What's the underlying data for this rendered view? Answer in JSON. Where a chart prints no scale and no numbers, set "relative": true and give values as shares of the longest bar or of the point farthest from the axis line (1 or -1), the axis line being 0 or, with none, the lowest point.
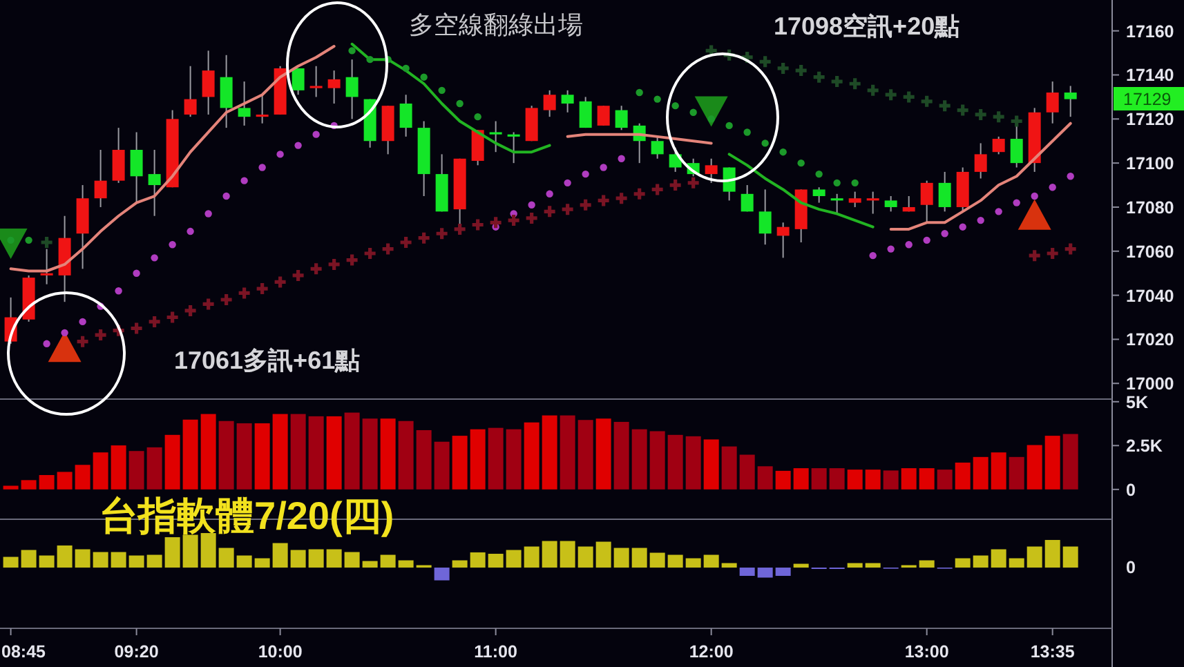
{
  "chart_data": [
    {
      "type": "candlestick",
      "title": "台指軟體7/20(四)",
      "annotations": [
        "多空線翻綠出場",
        "17098空訊+20點",
        "17061多訊+61點",
        "17129"
      ],
      "x": [
        8.75,
        8.8333,
        8.9167,
        9,
        9.0833,
        9.1667,
        9.25,
        9.3333,
        9.4167,
        9.5,
        9.5833,
        9.6667,
        9.75,
        9.8333,
        9.9167,
        10,
        10.0833,
        10.1667,
        10.25,
        10.3333,
        10.4167,
        10.5,
        10.5833,
        10.6667,
        10.75,
        10.8333,
        10.9167,
        11,
        11.0833,
        11.1667,
        11.25,
        11.3333,
        11.4167,
        11.5,
        11.5833,
        11.6667,
        11.75,
        11.8333,
        11.9167,
        12,
        12.0833,
        12.1667,
        12.25,
        12.3333,
        12.4167,
        12.5,
        12.5833,
        12.6667,
        12.75,
        12.8333,
        12.9167,
        13,
        13.0833,
        13.1667,
        13.25,
        13.3333,
        13.4167,
        13.5,
        13.5833,
        13.6667
      ],
      "colors": [
        "#f01414",
        "#f01414",
        "#f01414",
        "#f01414",
        "#f01414",
        "#f01414",
        "#f01414",
        "#14e628",
        "#14e628",
        "#f01414",
        "#f01414",
        "#f01414",
        "#14e628",
        "#14e628",
        "#f01414",
        "#f01414",
        "#14e628",
        "#f01414",
        "#f01414",
        "#14e628",
        "#14e628",
        "#f01414",
        "#14e628",
        "#14e628",
        "#14e628",
        "#f01414",
        "#f01414",
        "#14e628",
        "#14e628",
        "#f01414",
        "#f01414",
        "#14e628",
        "#14e628",
        "#f01414",
        "#14e628",
        "#14e628",
        "#14e628",
        "#14e628",
        "#14e628",
        "#f01414",
        "#14e628",
        "#14e628",
        "#14e628",
        "#f01414",
        "#f01414",
        "#14e628",
        "#14e628",
        "#f01414",
        "#f01414",
        "#14e628",
        "#f01414",
        "#f01414",
        "#14e628",
        "#f01414",
        "#f01414",
        "#f01414",
        "#14e628",
        "#f01414",
        "#f01414",
        "#14e628"
      ],
      "ohlc": [
        [
          17019,
          17039,
          17018,
          17030
        ],
        [
          17029,
          17049,
          17028,
          17048
        ],
        [
          17049,
          17061,
          17045,
          17050
        ],
        [
          17049,
          17076,
          17037,
          17066
        ],
        [
          17068,
          17090,
          17052,
          17084
        ],
        [
          17084,
          17106,
          17080,
          17092
        ],
        [
          17092,
          17116,
          17091,
          17106
        ],
        [
          17106,
          17114,
          17082,
          17094
        ],
        [
          17095,
          17106,
          17076,
          17090
        ],
        [
          17089,
          17124,
          17089,
          17120
        ],
        [
          17122,
          17144,
          17121,
          17129
        ],
        [
          17130,
          17151,
          17122,
          17142
        ],
        [
          17139,
          17149,
          17116,
          17125
        ],
        [
          17125,
          17137,
          17117,
          17121
        ],
        [
          17121,
          17131,
          17118,
          17122
        ],
        [
          17122,
          17144,
          17122,
          17143
        ],
        [
          17143,
          17143,
          17131,
          17133
        ],
        [
          17134,
          17144,
          17130,
          17135
        ],
        [
          17134,
          17142,
          17127,
          17138
        ],
        [
          17139,
          17147,
          17120,
          17130
        ],
        [
          17129,
          17129,
          17107,
          17110
        ],
        [
          17110,
          17126,
          17104,
          17126
        ],
        [
          17127,
          17131,
          17112,
          17116
        ],
        [
          17116,
          17119,
          17085,
          17095
        ],
        [
          17095,
          17104,
          17078,
          17078
        ],
        [
          17079,
          17102,
          17071,
          17102
        ],
        [
          17101,
          17115,
          17099,
          17115
        ],
        [
          17114,
          17119,
          17105,
          17113
        ],
        [
          17113,
          17114,
          17100,
          17112
        ],
        [
          17110,
          17126,
          17110,
          17125
        ],
        [
          17124,
          17133,
          17121,
          17131
        ],
        [
          17131,
          17133,
          17123,
          17127
        ],
        [
          17128,
          17130,
          17116,
          17116
        ],
        [
          17117,
          17126,
          17117,
          17126
        ],
        [
          17124,
          17126,
          17115,
          17116
        ],
        [
          17117,
          17118,
          17100,
          17110
        ],
        [
          17110,
          17112,
          17102,
          17104
        ],
        [
          17104,
          17107,
          17096,
          17098
        ],
        [
          17100,
          17102,
          17094,
          17095
        ],
        [
          17095,
          17102,
          17091,
          17099
        ],
        [
          17098,
          17098,
          17083,
          17087
        ],
        [
          17086,
          17090,
          17078,
          17078
        ],
        [
          17078,
          17088,
          17063,
          17068
        ],
        [
          17067,
          17073,
          17057,
          17071
        ],
        [
          17070,
          17088,
          17064,
          17088
        ],
        [
          17088,
          17089,
          17082,
          17085
        ],
        [
          17084,
          17086,
          17077,
          17083
        ],
        [
          17082,
          17087,
          17080,
          17084
        ],
        [
          17083,
          17087,
          17077,
          17084
        ],
        [
          17083,
          17085,
          17078,
          17080
        ],
        [
          17078,
          17085,
          17078,
          17080
        ],
        [
          17081,
          17092,
          17073,
          17091
        ],
        [
          17091,
          17096,
          17078,
          17080
        ],
        [
          17080,
          17098,
          17078,
          17096
        ],
        [
          17096,
          17109,
          17093,
          17104
        ],
        [
          17105,
          17112,
          17104,
          17111
        ],
        [
          17111,
          17117,
          17098,
          17100
        ],
        [
          17100,
          17125,
          17096,
          17123
        ],
        [
          17123,
          17137,
          17118,
          17132
        ],
        [
          17132,
          17135,
          17121,
          17129
        ]
      ],
      "series": [
        {
          "type": "line",
          "color": "#e4847a",
          "values": [
            17052,
            17051,
            17051,
            17054,
            17061,
            17069,
            17076,
            17082,
            17085,
            17094,
            17105,
            17114,
            17123,
            17127,
            17131,
            17139,
            17144,
            17148,
            17153,
            null,
            null,
            null,
            null,
            null,
            null,
            null,
            null,
            null,
            null,
            null,
            null,
            17112,
            17113,
            17113,
            17113,
            17113,
            17112,
            17111,
            17110,
            17109,
            null,
            null,
            null,
            null,
            null,
            null,
            null,
            null,
            null,
            17070,
            17070,
            17073,
            17073,
            17078,
            17083,
            17090,
            17094,
            17102,
            17110,
            17118
          ]
        },
        {
          "type": "line",
          "color": "#22b422",
          "values": [
            null,
            null,
            null,
            null,
            null,
            null,
            null,
            null,
            null,
            null,
            null,
            null,
            null,
            null,
            null,
            null,
            null,
            null,
            null,
            17154,
            17147,
            17147,
            17142,
            17136,
            17127,
            17119,
            17114,
            17109,
            17105,
            17105,
            17108,
            null,
            null,
            null,
            null,
            null,
            null,
            null,
            null,
            null,
            17104,
            17099,
            17093,
            17088,
            17082,
            17079,
            17077,
            17074,
            17071,
            null,
            null,
            null,
            null,
            null,
            null,
            null,
            null,
            null,
            null,
            null
          ]
        },
        {
          "type": "scatter",
          "marker": "circle",
          "color": "#b03cc0",
          "values": [
            null,
            null,
            17018,
            17023,
            17028,
            17035,
            17042,
            17050,
            17057,
            17063,
            17069,
            17077,
            17085,
            17092,
            17098,
            17104,
            17108,
            17113,
            17117,
            null,
            null,
            null,
            null,
            null,
            null,
            null,
            null,
            17071,
            17077,
            17081,
            17086,
            17091,
            17095,
            17098,
            17102,
            null,
            null,
            null,
            null,
            null,
            null,
            null,
            null,
            null,
            null,
            null,
            null,
            null,
            17058,
            17061,
            17063,
            17065,
            17068,
            17071,
            17074,
            17078,
            17082,
            17085,
            17089,
            17094
          ]
        },
        {
          "type": "scatter",
          "marker": "circle",
          "color": "#1c9a2a",
          "values": [
            17065,
            17065,
            null,
            null,
            null,
            null,
            null,
            null,
            null,
            null,
            null,
            null,
            null,
            null,
            null,
            null,
            null,
            null,
            null,
            17151,
            17147,
            17147,
            17143,
            17139,
            17133,
            17127,
            17121,
            null,
            null,
            null,
            null,
            null,
            null,
            null,
            null,
            17132,
            17129,
            17126,
            17123,
            17120,
            17117,
            17114,
            17109,
            17105,
            17100,
            17095,
            17091,
            17091,
            null,
            null,
            null,
            null,
            null,
            null,
            null,
            null,
            null,
            null,
            null,
            null
          ]
        },
        {
          "type": "scatter",
          "marker": "cross",
          "color": "#7a1424",
          "values": [
            null,
            null,
            null,
            null,
            17019,
            17022,
            17024,
            17025,
            17028,
            17030,
            17033,
            17036,
            17038,
            17041,
            17043,
            17046,
            17049,
            17052,
            17054,
            17056,
            17059,
            17061,
            17064,
            17066,
            17068,
            17070,
            17072,
            17073,
            17074,
            17075,
            17078,
            17079,
            17081,
            17083,
            17084,
            17086,
            17088,
            17090,
            17091,
            null,
            null,
            null,
            null,
            null,
            null,
            null,
            null,
            null,
            null,
            null,
            null,
            null,
            null,
            null,
            null,
            null,
            null,
            17058,
            17059,
            17061
          ]
        },
        {
          "type": "scatter",
          "marker": "cross",
          "color": "#1e4a26",
          "values": [
            null,
            null,
            17064,
            null,
            null,
            null,
            null,
            null,
            null,
            null,
            null,
            null,
            null,
            null,
            null,
            null,
            null,
            null,
            null,
            null,
            null,
            null,
            null,
            null,
            null,
            null,
            null,
            null,
            null,
            null,
            null,
            null,
            null,
            null,
            null,
            null,
            null,
            null,
            null,
            17151,
            17149,
            17148,
            17146,
            17143,
            17142,
            17139,
            17137,
            17136,
            17133,
            17131,
            17130,
            17128,
            17126,
            17124,
            17122,
            17121,
            17119,
            null,
            null,
            null
          ]
        }
      ],
      "xlim": [
        8.7,
        13.86
      ],
      "ylim": [
        16993.5,
        17174
      ],
      "yticks": [
        17000,
        17020,
        17040,
        17060,
        17080,
        17100,
        17120,
        17140,
        17160
      ],
      "tick_labels": "y"
    },
    {
      "type": "bar",
      "x": [
        8.75,
        8.8333,
        8.9167,
        9,
        9.0833,
        9.1667,
        9.25,
        9.3333,
        9.4167,
        9.5,
        9.5833,
        9.6667,
        9.75,
        9.8333,
        9.9167,
        10,
        10.0833,
        10.1667,
        10.25,
        10.3333,
        10.4167,
        10.5,
        10.5833,
        10.6667,
        10.75,
        10.8333,
        10.9167,
        11,
        11.0833,
        11.1667,
        11.25,
        11.3333,
        11.4167,
        11.5,
        11.5833,
        11.6667,
        11.75,
        11.8333,
        11.9167,
        12,
        12.0833,
        12.1667,
        12.25,
        12.3333,
        12.4167,
        12.5,
        12.5833,
        12.6667,
        12.75,
        12.8333,
        12.9167,
        13,
        13.0833,
        13.1667,
        13.25,
        13.3333,
        13.4167,
        13.5,
        13.5833,
        13.6667
      ],
      "values": [
        210,
        530,
        820,
        1000,
        1400,
        2110,
        2510,
        2190,
        2400,
        3110,
        3980,
        4300,
        3900,
        3770,
        3770,
        4300,
        4300,
        4170,
        4170,
        4380,
        4040,
        4040,
        3900,
        3380,
        2720,
        3060,
        3430,
        3510,
        3430,
        3820,
        4220,
        4220,
        3960,
        4040,
        3850,
        3430,
        3320,
        3110,
        3030,
        2850,
        2450,
        1980,
        1320,
        1060,
        1210,
        1210,
        1210,
        1130,
        1130,
        1080,
        1210,
        1210,
        1130,
        1530,
        1850,
        2110,
        1850,
        2530,
        3060,
        3160
      ],
      "colors": [
        "#e00000",
        "#e00000",
        "#e00000",
        "#e00000",
        "#e00000",
        "#e00000",
        "#e00000",
        "#a00012",
        "#a00012",
        "#e00000",
        "#e00000",
        "#e00000",
        "#a00012",
        "#a00012",
        "#e00000",
        "#e00000",
        "#a00012",
        "#a00012",
        "#e00000",
        "#a00012",
        "#a00012",
        "#e00000",
        "#a00012",
        "#a00012",
        "#a00012",
        "#e00000",
        "#e00000",
        "#a00012",
        "#a00012",
        "#e00000",
        "#e00000",
        "#a00012",
        "#a00012",
        "#e00000",
        "#a00012",
        "#a00012",
        "#a00012",
        "#a00012",
        "#a00012",
        "#e00000",
        "#a00012",
        "#a00012",
        "#a00012",
        "#e00000",
        "#e00000",
        "#a00012",
        "#a00012",
        "#e00000",
        "#e00000",
        "#a00012",
        "#e00000",
        "#e00000",
        "#a00012",
        "#e00000",
        "#e00000",
        "#e00000",
        "#a00012",
        "#e00000",
        "#e00000",
        "#a00012"
      ],
      "xlim": [
        8.7,
        13.86
      ],
      "ylim": [
        -1700,
        5150
      ],
      "yticks": [
        0,
        {
          "value": 2500,
          "label": "2.5K"
        },
        {
          "value": 5000,
          "label": "5K"
        }
      ],
      "tick_labels": "y"
    },
    {
      "type": "bar",
      "relative": true,
      "annotations": [
        "0"
      ],
      "x": [
        8.75,
        8.8333,
        8.9167,
        9,
        9.0833,
        9.1667,
        9.25,
        9.3333,
        9.4167,
        9.5,
        9.5833,
        9.6667,
        9.75,
        9.8333,
        9.9167,
        10,
        10.0833,
        10.1667,
        10.25,
        10.3333,
        10.4167,
        10.5,
        10.5833,
        10.6667,
        10.75,
        10.8333,
        10.9167,
        11,
        11.0833,
        11.1667,
        11.25,
        11.3333,
        11.4167,
        11.5,
        11.5833,
        11.6667,
        11.75,
        11.8333,
        11.9167,
        12,
        12.0833,
        12.1667,
        12.25,
        12.3333,
        12.4167,
        12.5,
        12.5833,
        12.6667,
        12.75,
        12.8333,
        12.9167,
        13,
        13.0833,
        13.1667,
        13.25,
        13.3333,
        13.4167,
        13.5,
        13.5833,
        13.6667
      ],
      "values": [
        0.31,
        0.51,
        0.35,
        0.64,
        0.53,
        0.45,
        0.45,
        0.35,
        0.37,
        0.88,
        0.95,
        1,
        0.57,
        0.35,
        0.27,
        0.71,
        0.51,
        0.53,
        0.53,
        0.45,
        0.19,
        0.37,
        0.21,
        0.07,
        -0.37,
        0.21,
        0.44,
        0.4,
        0.51,
        0.61,
        0.77,
        0.77,
        0.61,
        0.75,
        0.57,
        0.57,
        0.43,
        0.37,
        0.27,
        0.37,
        0.13,
        -0.24,
        -0.29,
        -0.24,
        0.11,
        -0.04,
        -0.04,
        0.13,
        0.13,
        -0.03,
        0.07,
        0.21,
        -0.03,
        0.27,
        0.35,
        0.53,
        0.27,
        0.61,
        0.8,
        0.61
      ],
      "colors": [
        "#c8c018",
        "#c8c018",
        "#c8c018",
        "#c8c018",
        "#c8c018",
        "#c8c018",
        "#c8c018",
        "#c8c018",
        "#c8c018",
        "#c8c018",
        "#c8c018",
        "#c8c018",
        "#c8c018",
        "#c8c018",
        "#c8c018",
        "#c8c018",
        "#c8c018",
        "#c8c018",
        "#c8c018",
        "#c8c018",
        "#c8c018",
        "#c8c018",
        "#c8c018",
        "#c8c018",
        "#6f66d8",
        "#c8c018",
        "#c8c018",
        "#c8c018",
        "#c8c018",
        "#c8c018",
        "#c8c018",
        "#c8c018",
        "#c8c018",
        "#c8c018",
        "#c8c018",
        "#c8c018",
        "#c8c018",
        "#c8c018",
        "#c8c018",
        "#c8c018",
        "#c8c018",
        "#6f66d8",
        "#6f66d8",
        "#6f66d8",
        "#c8c018",
        "#6f66d8",
        "#6f66d8",
        "#c8c018",
        "#c8c018",
        "#6f66d8",
        "#c8c018",
        "#c8c018",
        "#6f66d8",
        "#c8c018",
        "#c8c018",
        "#c8c018",
        "#c8c018",
        "#c8c018",
        "#c8c018",
        "#c8c018"
      ],
      "xlim": [
        8.7,
        13.86
      ],
      "xticks": [
        {
          "value": 8.75,
          "label": "08:45"
        },
        {
          "value": 9.3333,
          "label": "09:20"
        },
        {
          "value": 10,
          "label": "10:00"
        },
        {
          "value": 11,
          "label": "11:00"
        },
        {
          "value": 12,
          "label": "12:00"
        },
        {
          "value": 13,
          "label": "13:00"
        },
        {
          "value": 13.5833,
          "label": "13:35"
        }
      ]
    }
  ]
}
